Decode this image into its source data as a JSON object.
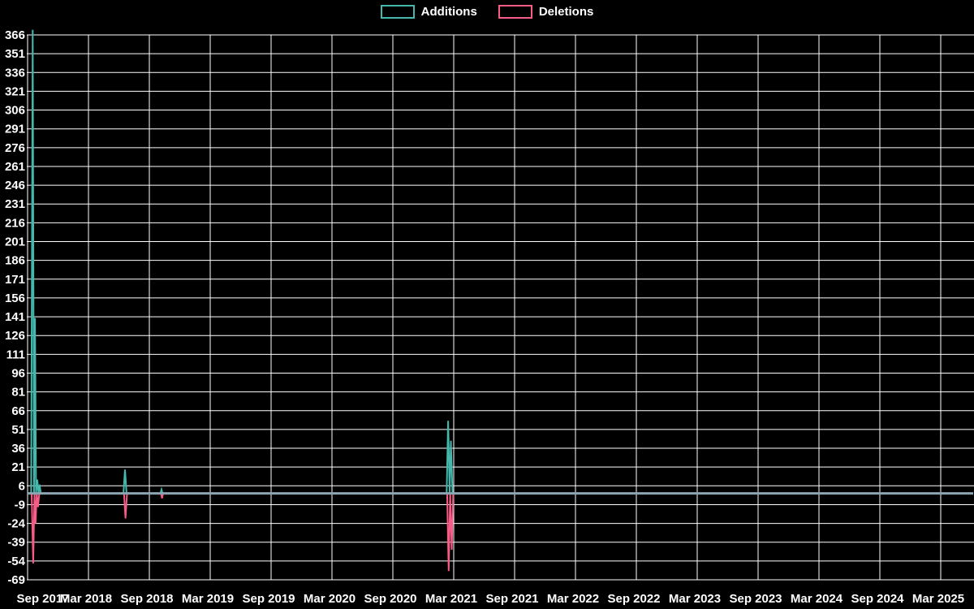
{
  "legend": {
    "items": [
      {
        "label": "Additions",
        "color": "#44b8ac"
      },
      {
        "label": "Deletions",
        "color": "#f75c87"
      }
    ]
  },
  "chart_data": {
    "type": "line",
    "title": "",
    "xlabel": "",
    "ylabel": "",
    "background_color": "#000000",
    "grid_color": "#ffffff",
    "text_color": "#ffffff",
    "zero_line_color": "#8da4b2",
    "grid": true,
    "legend_position": "top-center",
    "ylim": [
      -69,
      366
    ],
    "y_tick_step": 15,
    "y_ticks": [
      366,
      351,
      336,
      321,
      306,
      291,
      276,
      261,
      246,
      231,
      216,
      201,
      186,
      171,
      156,
      141,
      126,
      111,
      96,
      81,
      66,
      51,
      36,
      21,
      6,
      -9,
      -24,
      -39,
      -54,
      -69
    ],
    "x_unit": "months since Sep 2017",
    "x_max_months": 93.2,
    "x_ticks": [
      {
        "label": "Sep 2017",
        "m": 0
      },
      {
        "label": "Mar 2018",
        "m": 6
      },
      {
        "label": "Sep 2018",
        "m": 12
      },
      {
        "label": "Mar 2019",
        "m": 18
      },
      {
        "label": "Sep 2019",
        "m": 24
      },
      {
        "label": "Mar 2020",
        "m": 30
      },
      {
        "label": "Sep 2020",
        "m": 36
      },
      {
        "label": "Mar 2021",
        "m": 42
      },
      {
        "label": "Sep 2021",
        "m": 48
      },
      {
        "label": "Mar 2022",
        "m": 54
      },
      {
        "label": "Sep 2022",
        "m": 60
      },
      {
        "label": "Mar 2023",
        "m": 66
      },
      {
        "label": "Sep 2023",
        "m": 72
      },
      {
        "label": "Mar 2024",
        "m": 78
      },
      {
        "label": "Sep 2024",
        "m": 84
      },
      {
        "label": "Mar 2025",
        "m": 90
      }
    ],
    "series": [
      {
        "name": "Additions",
        "color": "#44b8ac",
        "points": [
          [
            0,
            0
          ],
          [
            0.35,
            0
          ],
          [
            0.5,
            370
          ],
          [
            0.63,
            0
          ],
          [
            0.73,
            140
          ],
          [
            0.83,
            0
          ],
          [
            0.95,
            11
          ],
          [
            1.08,
            0
          ],
          [
            1.18,
            7
          ],
          [
            1.3,
            0
          ],
          [
            9.45,
            0
          ],
          [
            9.6,
            19
          ],
          [
            9.75,
            0
          ],
          [
            13.1,
            0
          ],
          [
            13.2,
            3
          ],
          [
            13.3,
            0
          ],
          [
            41.3,
            0
          ],
          [
            41.45,
            58
          ],
          [
            41.6,
            0
          ],
          [
            41.72,
            42
          ],
          [
            41.88,
            0
          ],
          [
            93.2,
            0
          ]
        ]
      },
      {
        "name": "Deletions",
        "color": "#f75c87",
        "points": [
          [
            0,
            0
          ],
          [
            0.4,
            0
          ],
          [
            0.55,
            -56
          ],
          [
            0.68,
            0
          ],
          [
            0.78,
            -24
          ],
          [
            0.9,
            0
          ],
          [
            1.02,
            -11
          ],
          [
            1.15,
            0
          ],
          [
            9.5,
            0
          ],
          [
            9.65,
            -20
          ],
          [
            9.8,
            0
          ],
          [
            13.15,
            0
          ],
          [
            13.25,
            -4
          ],
          [
            13.35,
            0
          ],
          [
            41.35,
            0
          ],
          [
            41.5,
            -62
          ],
          [
            41.65,
            0
          ],
          [
            41.8,
            -45
          ],
          [
            41.95,
            0
          ],
          [
            93.2,
            0
          ]
        ]
      }
    ]
  }
}
